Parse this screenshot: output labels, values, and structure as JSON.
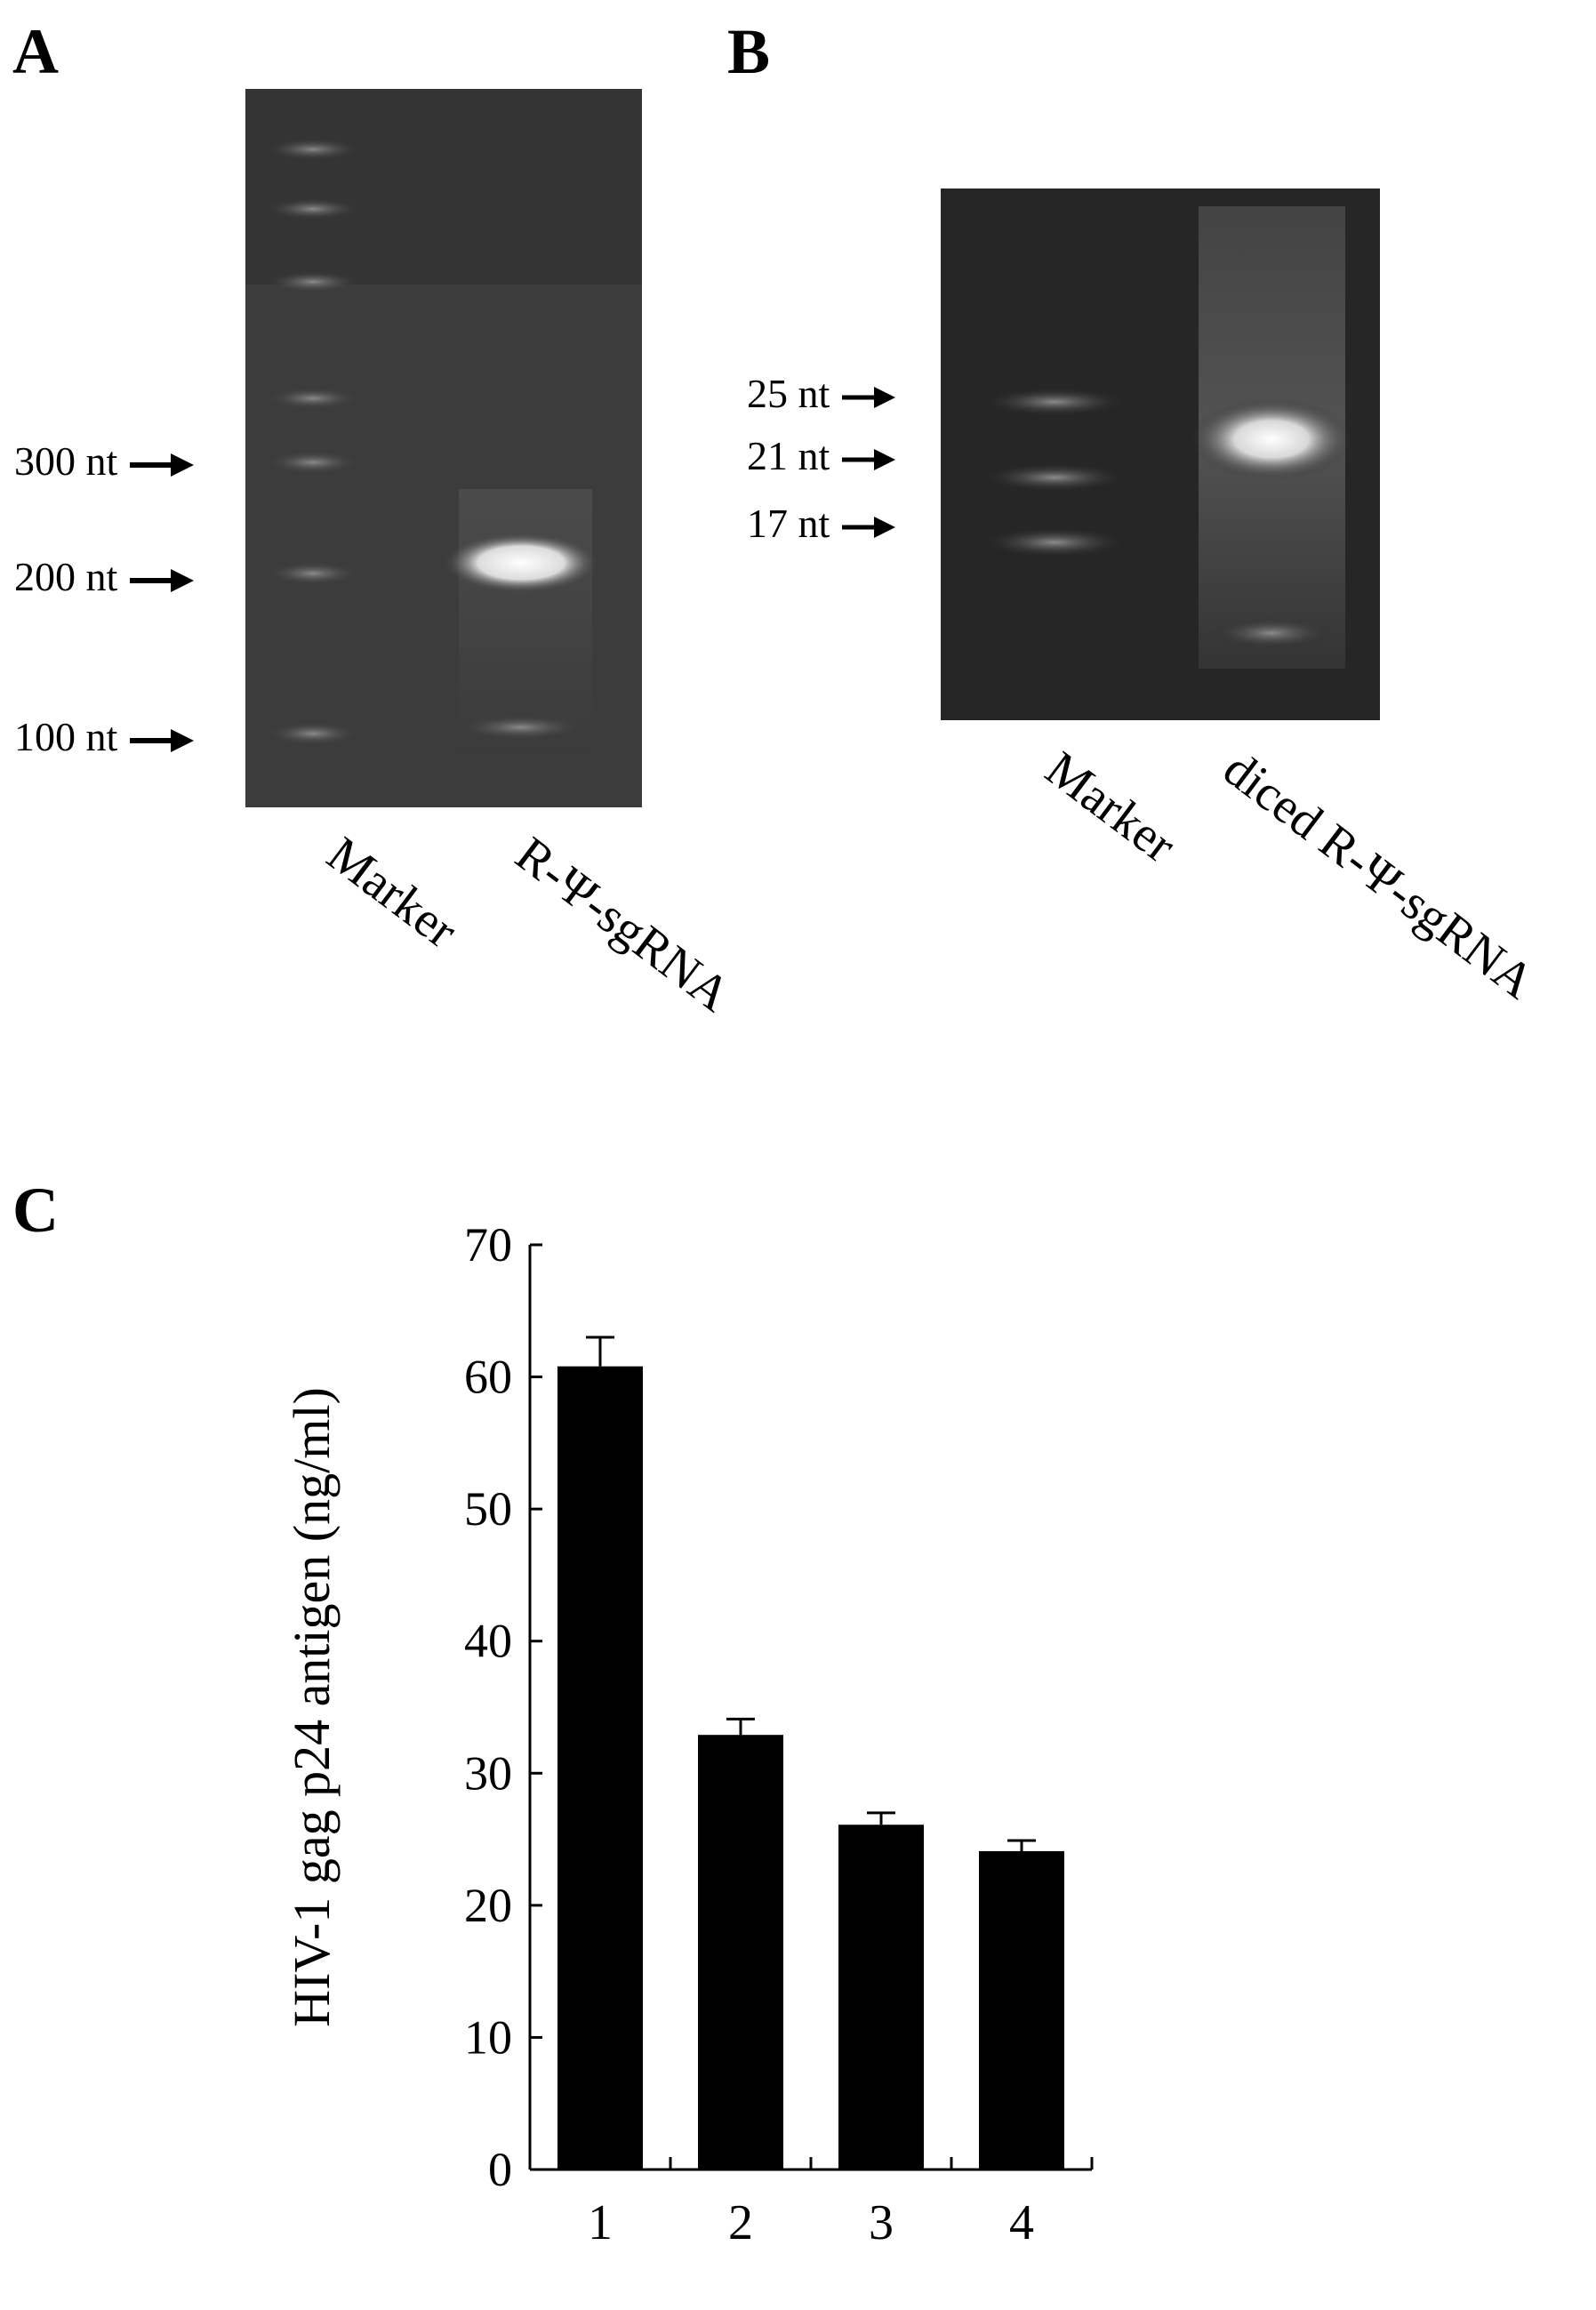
{
  "panels": {
    "a": {
      "letter": "A",
      "markers": [
        {
          "label": "300 nt"
        },
        {
          "label": "200 nt"
        },
        {
          "label": "100 nt"
        }
      ],
      "lanes": [
        "Marker",
        "R-Ψ-sgRNA"
      ]
    },
    "b": {
      "letter": "B",
      "markers": [
        {
          "label": "25 nt"
        },
        {
          "label": "21 nt"
        },
        {
          "label": "17 nt"
        }
      ],
      "lanes": [
        "Marker",
        "diced R-Ψ-sgRNA"
      ]
    },
    "c": {
      "letter": "C"
    }
  },
  "chart_data": {
    "type": "bar",
    "categories": [
      "1",
      "2",
      "3",
      "4"
    ],
    "values": [
      60.8,
      32.9,
      26.1,
      24.1
    ],
    "errors": [
      2.2,
      1.2,
      0.9,
      0.8
    ],
    "title": "",
    "xlabel": "",
    "ylabel": "HIV-1 gag p24 antigen (ng/ml)",
    "ylim": [
      0,
      70
    ],
    "yticks": [
      0,
      10,
      20,
      30,
      40,
      50,
      60,
      70
    ],
    "bar_color": "#000000",
    "grid": false
  }
}
